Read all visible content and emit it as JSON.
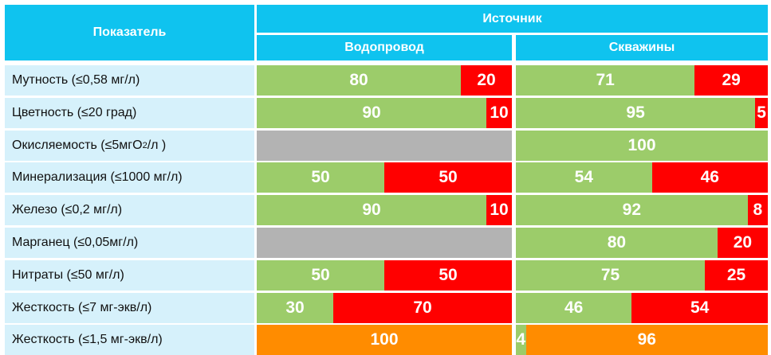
{
  "header": {
    "indicator": "Показатель",
    "source": "Источник",
    "col1": "Водопровод",
    "col2": "Скважины"
  },
  "colors": {
    "header": "#0fc3ef",
    "label_bg": "#d6f1fb",
    "compliant": "#9ccc6a",
    "non_compliant": "#ff0000",
    "hardness_low": "#ff8c00",
    "not_measured": "#b3b3b3"
  },
  "chart_data": {
    "type": "table",
    "columns": [
      "Водопровод",
      "Скважины"
    ],
    "rows": [
      {
        "label": "Мутность (≤0,58 мг/л)",
        "label_sub": "",
        "label_tail": "",
        "vodoprovod": [
          {
            "v": 80,
            "c": "green"
          },
          {
            "v": 20,
            "c": "red"
          }
        ],
        "skvazhiny": [
          {
            "v": 71,
            "c": "green"
          },
          {
            "v": 29,
            "c": "red"
          }
        ]
      },
      {
        "label": "Цветность (≤20 град)",
        "label_sub": "",
        "label_tail": "",
        "vodoprovod": [
          {
            "v": 90,
            "c": "green"
          },
          {
            "v": 10,
            "c": "red"
          }
        ],
        "skvazhiny": [
          {
            "v": 95,
            "c": "green"
          },
          {
            "v": 5,
            "c": "red"
          }
        ]
      },
      {
        "label": "Окисляемость (≤5мгO",
        "label_sub": "2",
        "label_tail": "/л )",
        "vodoprovod": [],
        "skvazhiny": [
          {
            "v": 100,
            "c": "green"
          }
        ]
      },
      {
        "label": "Минерализация (≤1000 мг/л)",
        "label_sub": "",
        "label_tail": "",
        "vodoprovod": [
          {
            "v": 50,
            "c": "green"
          },
          {
            "v": 50,
            "c": "red"
          }
        ],
        "skvazhiny": [
          {
            "v": 54,
            "c": "green"
          },
          {
            "v": 46,
            "c": "red"
          }
        ]
      },
      {
        "label": "Железо (≤0,2 мг/л)",
        "label_sub": "",
        "label_tail": "",
        "vodoprovod": [
          {
            "v": 90,
            "c": "green"
          },
          {
            "v": 10,
            "c": "red"
          }
        ],
        "skvazhiny": [
          {
            "v": 92,
            "c": "green"
          },
          {
            "v": 8,
            "c": "red"
          }
        ]
      },
      {
        "label": "Марганец (≤0,05мг/л)",
        "label_sub": "",
        "label_tail": "",
        "vodoprovod": [],
        "skvazhiny": [
          {
            "v": 80,
            "c": "green"
          },
          {
            "v": 20,
            "c": "red"
          }
        ]
      },
      {
        "label": "Нитраты (≤50 мг/л)",
        "label_sub": "",
        "label_tail": "",
        "vodoprovod": [
          {
            "v": 50,
            "c": "green"
          },
          {
            "v": 50,
            "c": "red"
          }
        ],
        "skvazhiny": [
          {
            "v": 75,
            "c": "green"
          },
          {
            "v": 25,
            "c": "red"
          }
        ]
      },
      {
        "label": "Жесткость (≤7 мг-экв/л)",
        "label_sub": "",
        "label_tail": "",
        "vodoprovod": [
          {
            "v": 30,
            "c": "green"
          },
          {
            "v": 70,
            "c": "red"
          }
        ],
        "skvazhiny": [
          {
            "v": 46,
            "c": "green"
          },
          {
            "v": 54,
            "c": "red"
          }
        ]
      },
      {
        "label": "Жесткость (≤1,5 мг-экв/л)",
        "label_sub": "",
        "label_tail": "",
        "vodoprovod": [
          {
            "v": 100,
            "c": "orange"
          }
        ],
        "skvazhiny": [
          {
            "v": 4,
            "c": "green"
          },
          {
            "v": 96,
            "c": "orange"
          }
        ]
      }
    ]
  }
}
